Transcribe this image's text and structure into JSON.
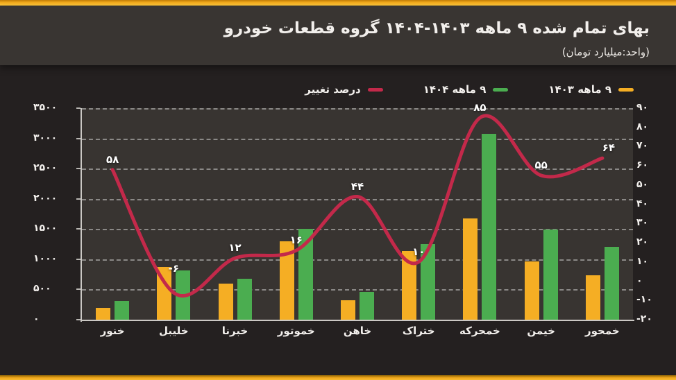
{
  "header": {
    "title": "بهای تمام شده ۹ ماهه ۱۴۰۳-۱۴۰۴ گروه قطعات خودرو",
    "subtitle": "(واحد:میلیارد تومان)"
  },
  "legend": {
    "items": [
      {
        "label": "۹ ماهه ۱۴۰۳",
        "color": "#F5AE24"
      },
      {
        "label": "۹ ماهه ۱۴۰۴",
        "color": "#4BAD50"
      },
      {
        "label": "درصد تغییر",
        "color": "#C3294A"
      }
    ]
  },
  "chart_data": {
    "type": "bar",
    "subtype": "combo-bar-line",
    "title": "بهای تمام شده ۹ ماهه ۱۴۰۳-۱۴۰۴ گروه قطعات خودرو",
    "unit": "میلیارد تومان",
    "categories": [
      "خنور",
      "خلیبل",
      "خبرنا",
      "خموتور",
      "خاهن",
      "ختراک",
      "خمحرکه",
      "خیمن",
      "خمحور"
    ],
    "series": [
      {
        "name": "۹ ماهه ۱۴۰۳",
        "type": "bar",
        "axis": "left",
        "color": "#F5AE24",
        "values": [
          195,
          870,
          600,
          1300,
          320,
          1140,
          1675,
          960,
          735
        ]
      },
      {
        "name": "۹ ماهه ۱۴۰۴",
        "type": "bar",
        "axis": "left",
        "color": "#4BAD50",
        "values": [
          308,
          820,
          672,
          1505,
          460,
          1255,
          3075,
          1490,
          1200
        ]
      },
      {
        "name": "درصد تغییر",
        "type": "line",
        "axis": "right",
        "color": "#C3294A",
        "values": [
          58,
          -6,
          12,
          16,
          44,
          10,
          85,
          55,
          64
        ],
        "point_labels": [
          "۵۸",
          "-۶",
          "۱۲",
          "۱۶",
          "۴۴",
          "۱۰",
          "۸۵",
          "۵۵",
          "۶۴"
        ]
      }
    ],
    "left_axis": {
      "min": 0,
      "max": 3500,
      "step": 500,
      "tick_labels": [
        "۰",
        "۵۰۰",
        "۱۰۰۰",
        "۱۵۰۰",
        "۲۰۰۰",
        "۲۵۰۰",
        "۳۰۰۰",
        "۳۵۰۰"
      ]
    },
    "right_axis": {
      "min": -20,
      "max": 90,
      "step": 10,
      "tick_labels": [
        "-۲۰",
        "-۱۰",
        "۰",
        "۱۰",
        "۲۰",
        "۳۰",
        "۴۰",
        "۵۰",
        "۶۰",
        "۷۰",
        "۸۰",
        "۹۰"
      ]
    },
    "grid": "horizontal-dashed",
    "legend_position": "top"
  },
  "colors": {
    "strip": "#F3AE25",
    "header_bg": "#393532",
    "page_bg": "#242020",
    "plot_bg": "#383431",
    "bar_1403": "#F5AE24",
    "bar_1404": "#4BAD50",
    "line_change": "#C3294A",
    "text": "#F2EFEC"
  }
}
